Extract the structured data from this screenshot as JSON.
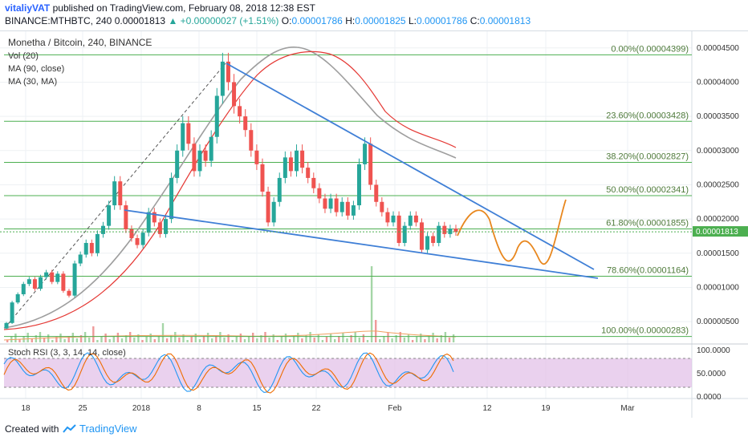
{
  "header": {
    "author": "vitaliyVAT",
    "published": "published on TradingView.com, February 08, 2018 12:38 EST",
    "symbol_line": "BINANCE:MTHBTC, 240",
    "price": "0.00001813",
    "change": "▲ +0.00000027 (+1.51%)",
    "o_label": "O:",
    "o": "0.00001786",
    "h_label": "H:",
    "h": "0.00001825",
    "l_label": "L:",
    "l": "0.00001786",
    "c_label": "C:",
    "c": "0.00001813"
  },
  "legend": {
    "title": "Monetha / Bitcoin, 240, BINANCE",
    "vol": "Vol (20)",
    "ma90": "MA (90, close)",
    "ma30": "MA (30, MA)"
  },
  "rsi_label": "Stoch RSI (3, 3, 14, 14, close)",
  "footer": {
    "created": "Created with",
    "brand": "TradingView"
  },
  "colors": {
    "fib": "#4caf50",
    "trend": "#3f7fd6",
    "projection": "#e8871e",
    "ma90": "#9e9e9e",
    "ma30": "#e53935",
    "up": "#26a69a",
    "down": "#ef5350",
    "rsi_band": "#e1bee7"
  },
  "chart_data": {
    "type": "candlestick",
    "x_ticks": [
      "18",
      "25",
      "2018",
      "8",
      "15",
      "22",
      "Feb",
      "12",
      "19",
      "Mar"
    ],
    "y_ticks": [
      "0.00004500",
      "0.00004000",
      "0.00003500",
      "0.00003000",
      "0.00002500",
      "0.00002000",
      "0.00001500",
      "0.00001000",
      "0.00000500"
    ],
    "ylim": [
      2.2e-06,
      4.65e-05
    ],
    "last_price": "0.00001813",
    "fib_levels": [
      {
        "label": "0.00%(0.00004399)",
        "value": 4.399e-05
      },
      {
        "label": "23.60%(0.00003428)",
        "value": 3.428e-05
      },
      {
        "label": "38.20%(0.00002827)",
        "value": 2.827e-05
      },
      {
        "label": "50.00%(0.00002341)",
        "value": 2.341e-05
      },
      {
        "label": "61.80%(0.00001855)",
        "value": 1.855e-05
      },
      {
        "label": "78.60%(0.00001164)",
        "value": 1.164e-05
      },
      {
        "label": "100.00%(0.00000283)",
        "value": 2.83e-06
      }
    ],
    "candles": [
      [
        4e-06,
        4.8e-06
      ],
      [
        4.8e-06,
        7.8e-06
      ],
      [
        7.8e-06,
        9e-06
      ],
      [
        9e-06,
        1.05e-05
      ],
      [
        1.05e-05,
        1.12e-05
      ],
      [
        1.12e-05,
        9.8e-06
      ],
      [
        9.8e-06,
        1.15e-05
      ],
      [
        1.15e-05,
        1.22e-05
      ],
      [
        1.22e-05,
        1.08e-05
      ],
      [
        1.08e-05,
        1.2e-05
      ],
      [
        1.2e-05,
        9.5e-06
      ],
      [
        9.5e-06,
        8.8e-06
      ],
      [
        8.8e-06,
        1.35e-05
      ],
      [
        1.35e-05,
        1.48e-05
      ],
      [
        1.48e-05,
        1.65e-05
      ],
      [
        1.65e-05,
        1.5e-05
      ],
      [
        1.5e-05,
        1.78e-05
      ],
      [
        1.78e-05,
        1.9e-05
      ],
      [
        1.9e-05,
        2.2e-05
      ],
      [
        2.2e-05,
        2.55e-05
      ],
      [
        2.55e-05,
        2.2e-05
      ],
      [
        2.2e-05,
        1.85e-05
      ],
      [
        1.85e-05,
        1.72e-05
      ],
      [
        1.72e-05,
        1.62e-05
      ],
      [
        1.62e-05,
        1.8e-05
      ],
      [
        1.8e-05,
        2.1e-05
      ],
      [
        2.1e-05,
        1.95e-05
      ],
      [
        1.95e-05,
        1.78e-05
      ],
      [
        1.78e-05,
        2e-05
      ],
      [
        2e-05,
        2.6e-05
      ],
      [
        2.6e-05,
        3e-05
      ],
      [
        3e-05,
        3.4e-05
      ],
      [
        3.4e-05,
        3.1e-05
      ],
      [
        3.1e-05,
        2.7e-05
      ],
      [
        2.7e-05,
        3e-05
      ],
      [
        3e-05,
        2.85e-05
      ],
      [
        2.85e-05,
        3.2e-05
      ],
      [
        3.2e-05,
        3.8e-05
      ],
      [
        3.8e-05,
        4.3e-05
      ],
      [
        4.3e-05,
        4e-05
      ],
      [
        4e-05,
        3.65e-05
      ],
      [
        3.65e-05,
        3.5e-05
      ],
      [
        3.5e-05,
        3.3e-05
      ],
      [
        3.3e-05,
        3e-05
      ],
      [
        3e-05,
        2.8e-05
      ],
      [
        2.8e-05,
        2.4e-05
      ],
      [
        2.4e-05,
        1.95e-05
      ],
      [
        1.95e-05,
        2.25e-05
      ],
      [
        2.25e-05,
        2.6e-05
      ],
      [
        2.6e-05,
        2.9e-05
      ],
      [
        2.9e-05,
        2.7e-05
      ],
      [
        2.7e-05,
        3e-05
      ],
      [
        3e-05,
        2.75e-05
      ],
      [
        2.75e-05,
        2.6e-05
      ],
      [
        2.6e-05,
        2.45e-05
      ],
      [
        2.45e-05,
        2.3e-05
      ],
      [
        2.3e-05,
        2.15e-05
      ],
      [
        2.15e-05,
        2.3e-05
      ],
      [
        2.3e-05,
        2.1e-05
      ],
      [
        2.1e-05,
        2.25e-05
      ],
      [
        2.25e-05,
        2.05e-05
      ],
      [
        2.05e-05,
        2.2e-05
      ],
      [
        2.2e-05,
        2.8e-05
      ],
      [
        2.8e-05,
        3.1e-05
      ],
      [
        3.1e-05,
        2.5e-05
      ],
      [
        2.5e-05,
        2.25e-05
      ],
      [
        2.25e-05,
        2.1e-05
      ],
      [
        2.1e-05,
        1.95e-05
      ],
      [
        1.95e-05,
        2.05e-05
      ],
      [
        2.05e-05,
        1.65e-05
      ],
      [
        1.65e-05,
        1.9e-05
      ],
      [
        1.9e-05,
        2.05e-05
      ],
      [
        2.05e-05,
        1.95e-05
      ],
      [
        1.95e-05,
        1.55e-05
      ],
      [
        1.55e-05,
        1.75e-05
      ],
      [
        1.75e-05,
        1.65e-05
      ],
      [
        1.65e-05,
        1.9e-05
      ],
      [
        1.9e-05,
        1.78e-05
      ],
      [
        1.78e-05,
        1.86e-05
      ],
      [
        1.86e-05,
        1.81e-05
      ]
    ],
    "projection_note": ""
  }
}
